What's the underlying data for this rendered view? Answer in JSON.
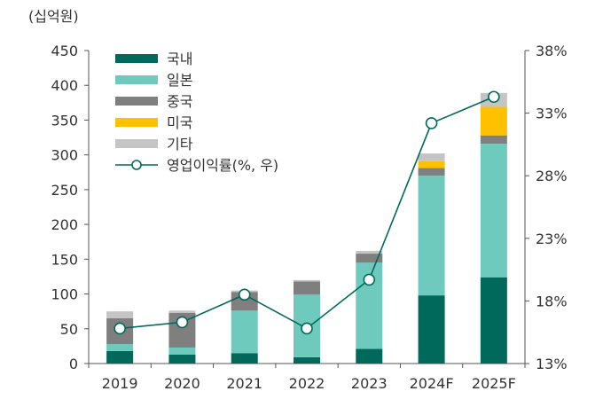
{
  "chart_data": {
    "type": "bar",
    "stacked": true,
    "unit_label": "(십억원)",
    "categories": [
      "2019",
      "2020",
      "2021",
      "2022",
      "2023",
      "2024F",
      "2025F"
    ],
    "series": [
      {
        "name": "국내",
        "color": "#00695c",
        "values": [
          18,
          13,
          15,
          9,
          21,
          98,
          124
        ]
      },
      {
        "name": "일본",
        "color": "#6ecabd",
        "values": [
          10,
          10,
          61,
          90,
          124,
          172,
          192
        ]
      },
      {
        "name": "중국",
        "color": "#7f7f7f",
        "values": [
          37,
          50,
          27,
          19,
          13,
          11,
          12
        ]
      },
      {
        "name": "미국",
        "color": "#ffc000",
        "values": [
          0,
          0,
          0,
          0,
          0,
          10,
          41
        ]
      },
      {
        "name": "기타",
        "color": "#c4c4c4",
        "values": [
          10,
          3,
          2,
          2,
          4,
          11,
          20
        ]
      }
    ],
    "line_series": {
      "name": "영업이익률(%, 우)",
      "color": "#00695c",
      "values": [
        15.8,
        16.3,
        18.5,
        15.8,
        19.7,
        32.2,
        34.3
      ]
    },
    "y_left": {
      "min": 0,
      "max": 450,
      "ticks": [
        "0",
        "50",
        "100",
        "150",
        "200",
        "250",
        "300",
        "350",
        "400",
        "450"
      ]
    },
    "y_right": {
      "min": 13,
      "max": 38,
      "ticks": [
        "13%",
        "18%",
        "23%",
        "28%",
        "33%",
        "38%"
      ]
    },
    "legend_position": "top-left"
  }
}
